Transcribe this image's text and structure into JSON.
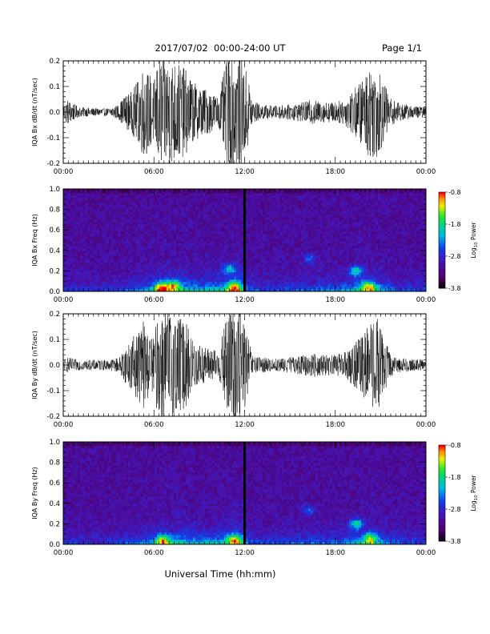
{
  "header": {
    "title": "2017/07/02  00:00-24:00 UT",
    "page": "Page 1/1"
  },
  "footer": {
    "xlabel": "Universal Time (hh:mm)"
  },
  "colorbar": {
    "label_prefix": "Log",
    "label_sub": "10",
    "label_suffix": " Power",
    "ticks": [
      "-0.8",
      "-1.8",
      "-2.8",
      "-3.8"
    ],
    "tick_values": [
      -0.8,
      -1.8,
      -2.8,
      -3.8
    ],
    "range": [
      -3.8,
      -0.8
    ]
  },
  "chart_data": [
    {
      "type": "line",
      "id": "bx-waveform",
      "ylabel": "IQA Bx dB/dt (nT/sec)",
      "xlim": [
        0,
        24
      ],
      "ylim": [
        -0.2,
        0.2
      ],
      "xticks": [
        "00:00",
        "06:00",
        "12:00",
        "18:00",
        "00:00"
      ],
      "yticks": [
        "0.2",
        "0.1",
        "0.0",
        "-0.1",
        "-0.2"
      ],
      "ytick_values": [
        0.2,
        0.1,
        0.0,
        -0.1,
        -0.2
      ],
      "envelope": {
        "x": [
          0,
          0.3,
          1,
          2,
          3,
          3.7,
          4.0,
          4.5,
          5.0,
          5.3,
          5.6,
          6.0,
          6.3,
          6.8,
          7.5,
          8.2,
          8.6,
          9.0,
          9.5,
          10.0,
          10.3,
          10.6,
          10.9,
          11.2,
          11.5,
          11.9,
          12.2,
          12.5,
          13,
          14,
          15,
          16,
          16.5,
          17,
          17.5,
          18,
          18.6,
          19.2,
          19.8,
          20.3,
          20.8,
          21.2,
          21.6,
          22,
          23,
          24
        ],
        "amplitude": [
          0.03,
          0.05,
          0.02,
          0.015,
          0.015,
          0.03,
          0.06,
          0.08,
          0.13,
          0.18,
          0.16,
          0.12,
          0.22,
          0.21,
          0.2,
          0.16,
          0.12,
          0.1,
          0.09,
          0.07,
          0.06,
          0.15,
          0.22,
          0.22,
          0.22,
          0.2,
          0.15,
          0.05,
          0.03,
          0.025,
          0.03,
          0.04,
          0.05,
          0.04,
          0.04,
          0.04,
          0.05,
          0.09,
          0.13,
          0.18,
          0.18,
          0.12,
          0.06,
          0.04,
          0.025,
          0.02
        ]
      }
    },
    {
      "type": "heatmap",
      "id": "bx-spectrogram",
      "ylabel": "IQA Bx Freq (Hz)",
      "xlim": [
        0,
        24
      ],
      "ylim": [
        0,
        1.0
      ],
      "xticks": [
        "00:00",
        "06:00",
        "12:00",
        "18:00",
        "00:00"
      ],
      "yticks": [
        "1.0",
        "0.8",
        "0.6",
        "0.4",
        "0.2",
        "0.0"
      ],
      "ytick_values": [
        1.0,
        0.8,
        0.6,
        0.4,
        0.2,
        0.0
      ],
      "z_range": [
        -3.8,
        -0.8
      ],
      "low_freq_activity": {
        "x": [
          0,
          2,
          4,
          5,
          6,
          6.5,
          7.5,
          8.5,
          9.5,
          10.5,
          11.2,
          11.8,
          12.2,
          13,
          15,
          17,
          18.5,
          19.5,
          20.5,
          21,
          22,
          24
        ],
        "level": [
          0.3,
          0.25,
          0.35,
          0.5,
          0.65,
          0.9,
          0.85,
          0.75,
          0.7,
          0.8,
          0.95,
          0.9,
          0.45,
          0.35,
          0.4,
          0.45,
          0.55,
          0.75,
          0.85,
          0.65,
          0.4,
          0.35
        ]
      },
      "hot_spots": [
        {
          "t": 6.5,
          "f": 0.04,
          "level": 1.0
        },
        {
          "t": 7.3,
          "f": 0.06,
          "level": 0.9
        },
        {
          "t": 11.3,
          "f": 0.05,
          "level": 1.0
        },
        {
          "t": 11.0,
          "f": 0.22,
          "level": 0.7
        },
        {
          "t": 20.2,
          "f": 0.05,
          "level": 0.95
        },
        {
          "t": 19.4,
          "f": 0.2,
          "level": 0.8
        },
        {
          "t": 16.3,
          "f": 0.32,
          "level": 0.45
        }
      ],
      "data_gap": {
        "start": 11.85,
        "end": 12.0
      }
    },
    {
      "type": "line",
      "id": "by-waveform",
      "ylabel": "IQA By dB/dt (nT/sec)",
      "xlim": [
        0,
        24
      ],
      "ylim": [
        -0.2,
        0.2
      ],
      "xticks": [
        "00:00",
        "06:00",
        "12:00",
        "18:00",
        "00:00"
      ],
      "yticks": [
        "0.2",
        "0.1",
        "0.0",
        "-0.1",
        "-0.2"
      ],
      "ytick_values": [
        0.2,
        0.1,
        0.0,
        -0.1,
        -0.2
      ],
      "envelope": {
        "x": [
          0,
          0.3,
          1,
          2,
          3,
          3.7,
          4.0,
          4.5,
          5.0,
          5.3,
          5.6,
          6.0,
          6.3,
          6.8,
          7.5,
          8.2,
          8.6,
          9.0,
          9.5,
          10.0,
          10.3,
          10.6,
          10.9,
          11.2,
          11.5,
          11.9,
          12.2,
          12.5,
          13,
          14,
          15,
          16,
          16.5,
          17,
          17.5,
          18,
          18.6,
          19.2,
          19.8,
          20.3,
          20.8,
          21.2,
          21.6,
          22,
          23,
          24
        ],
        "amplitude": [
          0.02,
          0.03,
          0.02,
          0.02,
          0.02,
          0.03,
          0.06,
          0.1,
          0.14,
          0.18,
          0.13,
          0.1,
          0.22,
          0.22,
          0.2,
          0.16,
          0.1,
          0.08,
          0.07,
          0.06,
          0.05,
          0.14,
          0.22,
          0.22,
          0.22,
          0.2,
          0.12,
          0.04,
          0.03,
          0.025,
          0.03,
          0.04,
          0.05,
          0.04,
          0.04,
          0.04,
          0.05,
          0.08,
          0.12,
          0.17,
          0.18,
          0.12,
          0.05,
          0.03,
          0.025,
          0.02
        ]
      }
    },
    {
      "type": "heatmap",
      "id": "by-spectrogram",
      "ylabel": "IQA By Freq (Hz)",
      "xlim": [
        0,
        24
      ],
      "ylim": [
        0,
        1.0
      ],
      "xticks": [
        "00:00",
        "06:00",
        "12:00",
        "18:00",
        "00:00"
      ],
      "yticks": [
        "1.0",
        "0.8",
        "0.6",
        "0.4",
        "0.2",
        "0.0"
      ],
      "ytick_values": [
        1.0,
        0.8,
        0.6,
        0.4,
        0.2,
        0.0
      ],
      "z_range": [
        -3.8,
        -0.8
      ],
      "low_freq_activity": {
        "x": [
          0,
          2,
          4,
          5,
          6,
          6.5,
          7.5,
          8.5,
          9.5,
          10.5,
          11.2,
          11.8,
          12.2,
          13,
          15,
          17,
          18.5,
          19.5,
          20.5,
          21,
          22,
          24
        ],
        "level": [
          0.3,
          0.25,
          0.35,
          0.5,
          0.6,
          0.85,
          0.8,
          0.7,
          0.65,
          0.75,
          0.9,
          0.85,
          0.45,
          0.35,
          0.4,
          0.45,
          0.5,
          0.7,
          0.8,
          0.6,
          0.4,
          0.35
        ]
      },
      "hot_spots": [
        {
          "t": 6.6,
          "f": 0.04,
          "level": 0.85
        },
        {
          "t": 11.3,
          "f": 0.05,
          "level": 0.9
        },
        {
          "t": 19.4,
          "f": 0.2,
          "level": 0.85
        },
        {
          "t": 20.3,
          "f": 0.06,
          "level": 0.85
        },
        {
          "t": 16.2,
          "f": 0.33,
          "level": 0.5
        }
      ],
      "data_gap": {
        "start": 11.85,
        "end": 12.0
      }
    }
  ]
}
